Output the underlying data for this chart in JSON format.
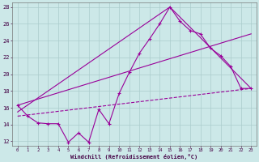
{
  "xlabel": "Windchill (Refroidissement éolien,°C)",
  "bg_color": "#cce8e8",
  "grid_color": "#aacccc",
  "line_color": "#990099",
  "xlim": [
    -0.5,
    23.5
  ],
  "ylim": [
    11.5,
    28.5
  ],
  "xticks": [
    0,
    1,
    2,
    3,
    4,
    5,
    6,
    7,
    8,
    9,
    10,
    11,
    12,
    13,
    14,
    15,
    16,
    17,
    18,
    19,
    20,
    21,
    22,
    23
  ],
  "yticks": [
    12,
    14,
    16,
    18,
    20,
    22,
    24,
    26,
    28
  ],
  "series_zigzag": {
    "x": [
      0,
      1,
      2,
      3,
      4,
      5,
      6,
      7,
      8,
      9,
      10,
      11,
      12,
      13,
      14,
      15,
      16,
      17,
      18,
      19,
      20,
      21,
      22,
      23
    ],
    "y": [
      16.3,
      15.0,
      14.2,
      14.1,
      14.1,
      11.9,
      13.0,
      11.9,
      15.8,
      14.1,
      17.7,
      20.2,
      22.5,
      24.2,
      26.0,
      28.0,
      26.3,
      25.2,
      24.8,
      23.1,
      22.2,
      20.9,
      18.3,
      18.3
    ]
  },
  "series_diag_low": {
    "x": [
      0,
      23
    ],
    "y": [
      15.0,
      18.3
    ]
  },
  "series_diag_high_rise": {
    "x": [
      0,
      15
    ],
    "y": [
      15.5,
      28.0
    ]
  },
  "series_diag_high_fall": {
    "x": [
      15,
      23
    ],
    "y": [
      28.0,
      18.3
    ]
  },
  "series_mid": {
    "x": [
      0,
      23
    ],
    "y": [
      16.3,
      24.8
    ]
  }
}
